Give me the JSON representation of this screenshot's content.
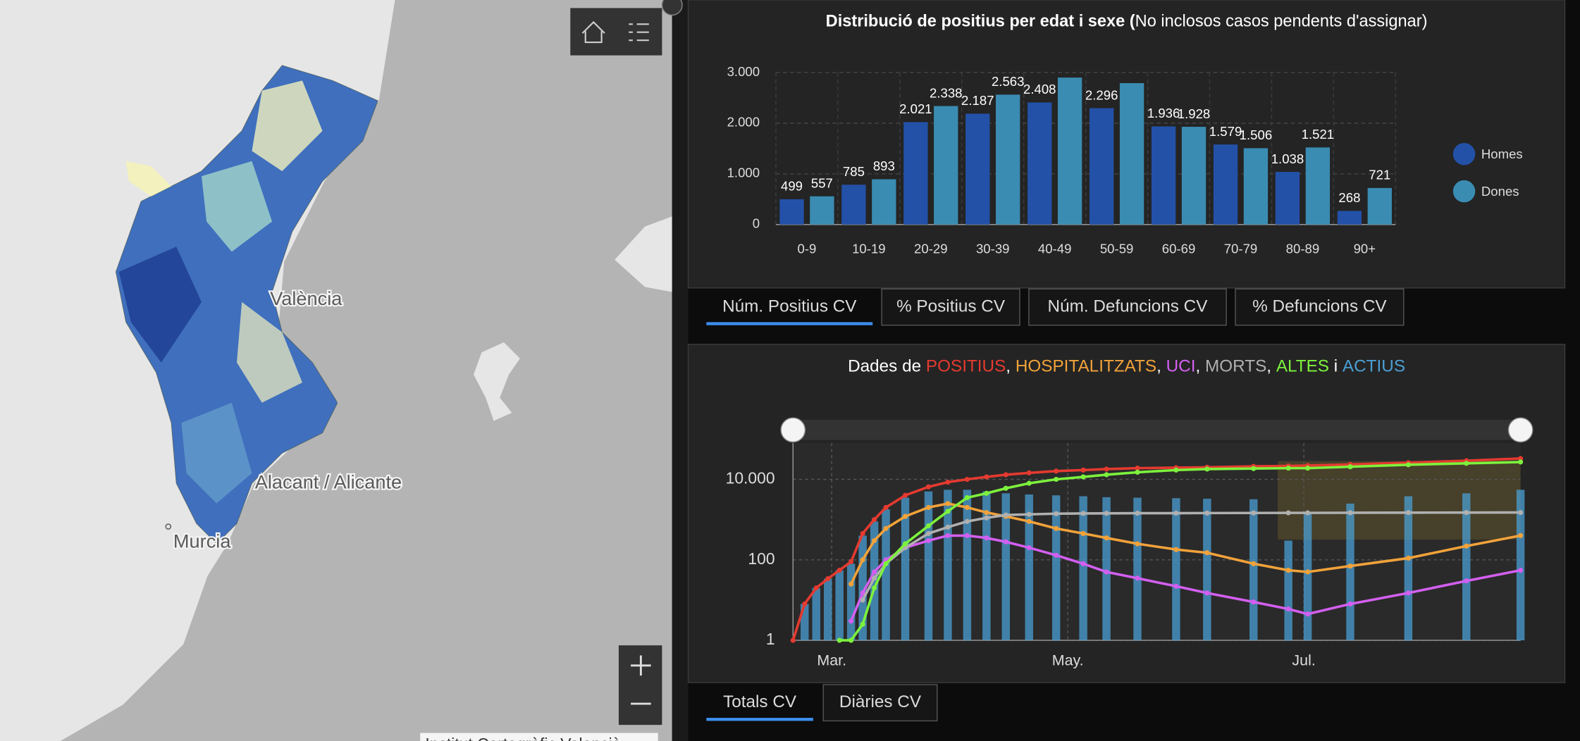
{
  "map": {
    "labels": [
      "València",
      "Alacant / Alicante",
      "Murcia"
    ],
    "attribution": "Institut Cartogràfic Valencià"
  },
  "chart_data": [
    {
      "type": "bar",
      "title": "Distribució de positius per edat i sexe (",
      "title_note": "No inclosos casos pendents d'assignar)",
      "categories": [
        "0-9",
        "10-19",
        "20-29",
        "30-39",
        "40-49",
        "50-59",
        "60-69",
        "70-79",
        "80-89",
        "90+"
      ],
      "series": [
        {
          "name": "Homes",
          "color": "#2351a8",
          "values": [
            499,
            785,
            2021,
            2187,
            2408,
            2296,
            1936,
            1579,
            1038,
            268
          ],
          "value_labels": [
            "499",
            "785",
            "2.021",
            "2.187",
            "2.408",
            "2.296",
            "1.936",
            "1.579",
            "1.038",
            "268"
          ]
        },
        {
          "name": "Dones",
          "color": "#3a8cb2",
          "values": [
            557,
            893,
            2338,
            2563,
            2900,
            2790,
            1928,
            1506,
            1521,
            721
          ],
          "value_labels": [
            "557",
            "893",
            "2.338",
            "2.563",
            null,
            null,
            "1.928",
            "1.506",
            "1.521",
            "721"
          ]
        }
      ],
      "ylim": [
        0,
        3000
      ],
      "yticks": [
        0,
        {
          "value": 1000,
          "label": "1.000"
        },
        {
          "value": 2000,
          "label": "2.000"
        },
        {
          "value": 3000,
          "label": "3.000"
        }
      ],
      "grid": true,
      "legend": "right"
    },
    {
      "type": "line",
      "title_joiners": [
        "Dades de ",
        ", ",
        ", ",
        ", ",
        ", ",
        " i "
      ],
      "x": [
        51,
        54,
        57,
        60,
        63,
        66,
        69,
        72,
        75,
        80,
        86,
        91,
        96,
        101,
        106,
        112,
        119,
        126,
        132,
        140,
        150,
        158,
        170,
        179,
        184,
        195,
        210,
        225,
        239
      ],
      "series": [
        {
          "name": "POSITIUS",
          "color": "#e53a30",
          "values": [
            1,
            8,
            20,
            34,
            55,
            90,
            450,
            1000,
            2000,
            4000,
            6500,
            8500,
            10000,
            11500,
            13000,
            14500,
            16000,
            17000,
            18000,
            19000,
            19500,
            20000,
            21000,
            21500,
            22000,
            23500,
            26000,
            29000,
            33000
          ]
        },
        {
          "name": "HOSPITALITZATS",
          "color": "#f2a23a",
          "values": [
            null,
            null,
            null,
            null,
            null,
            25,
            100,
            300,
            600,
            1200,
            2000,
            2500,
            2000,
            1500,
            1200,
            900,
            600,
            450,
            350,
            250,
            180,
            150,
            80,
            55,
            50,
            70,
            110,
            220,
            400
          ]
        },
        {
          "name": "UCI",
          "color": "#d35ff0",
          "values": [
            null,
            null,
            null,
            null,
            null,
            3,
            15,
            50,
            100,
            200,
            300,
            400,
            400,
            350,
            280,
            200,
            130,
            80,
            50,
            35,
            22,
            15,
            9,
            6,
            4.5,
            8,
            15,
            30,
            55
          ]
        },
        {
          "name": "MORTS",
          "color": "#b0b0b0",
          "values": [
            null,
            null,
            null,
            null,
            null,
            null,
            10,
            35,
            80,
            200,
            450,
            650,
            900,
            1100,
            1300,
            1350,
            1400,
            1420,
            1430,
            1440,
            1445,
            1450,
            1460,
            1470,
            1470,
            1480,
            1490,
            1495,
            1500
          ]
        },
        {
          "name": "ALTES",
          "color": "#7df23c",
          "values": [
            null,
            null,
            null,
            null,
            1,
            1,
            2.5,
            20,
            80,
            250,
            700,
            1600,
            3500,
            4500,
            6000,
            8000,
            10000,
            11500,
            13000,
            15000,
            17000,
            18000,
            18500,
            19000,
            19000,
            20500,
            23000,
            25000,
            27000
          ]
        },
        {
          "name": "ACTIUS",
          "color": "#4a9fd4",
          "mark": "bar",
          "values": [
            1,
            8,
            20,
            34,
            55,
            80,
            400,
            900,
            1800,
            3500,
            5000,
            5500,
            5500,
            5000,
            4500,
            4200,
            4000,
            3800,
            3600,
            3500,
            3400,
            3300,
            3200,
            300,
            1500,
            2500,
            3800,
            4500,
            5500
          ]
        }
      ],
      "log_y": true,
      "ylim": [
        1,
        80000
      ],
      "yticks": [
        1,
        100,
        {
          "value": 10000,
          "label": "10.000"
        }
      ],
      "xlim": [
        51,
        239
      ],
      "xticks": [
        {
          "value": 61,
          "label": "Mar."
        },
        {
          "value": 122,
          "label": "May."
        },
        {
          "value": 183,
          "label": "Jul."
        }
      ],
      "grid": true
    }
  ],
  "tabs_top": [
    "Núm. Positius CV",
    "% Positius CV",
    "Núm. Defuncions CV",
    "% Defuncions CV"
  ],
  "tabs_bottom": [
    "Totals CV",
    "Diàries CV"
  ]
}
